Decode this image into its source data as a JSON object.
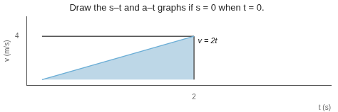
{
  "chart_data": {
    "type": "line",
    "title": "Draw the s–t and a–t graphs if s = 0 when t = 0.",
    "xlabel": "t (s)",
    "ylabel": "v (m/s)",
    "series": [
      {
        "type": "area",
        "x": [
          0,
          2
        ],
        "values": [
          0,
          4
        ],
        "color": "#bdd7e7"
      },
      {
        "type": "line",
        "x": [
          0,
          2
        ],
        "values": [
          0,
          4
        ],
        "color": "#6baed6"
      },
      {
        "type": "line",
        "x": [
          0,
          2
        ],
        "values": [
          4,
          4
        ],
        "color": "#555555"
      },
      {
        "type": "line",
        "x": [
          2,
          2
        ],
        "values": [
          0,
          4
        ],
        "color": "#555555"
      }
    ],
    "annotations": [
      {
        "text": "v = 2t",
        "x": 2.05,
        "y": 3.55
      }
    ],
    "xlim": [
      -0.2,
      3.8
    ],
    "ylim": [
      -0.5,
      5.8
    ],
    "xticks": [
      2
    ],
    "yticks": [
      4
    ],
    "grid": false
  }
}
